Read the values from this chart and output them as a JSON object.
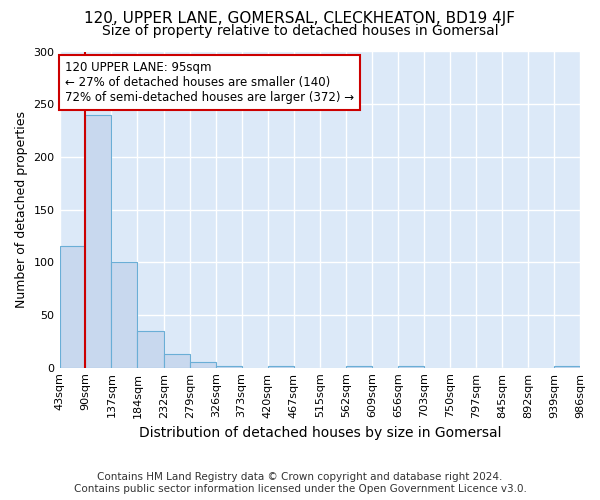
{
  "title": "120, UPPER LANE, GOMERSAL, CLECKHEATON, BD19 4JF",
  "subtitle": "Size of property relative to detached houses in Gomersal",
  "xlabel": "Distribution of detached houses by size in Gomersal",
  "ylabel": "Number of detached properties",
  "footnote1": "Contains HM Land Registry data © Crown copyright and database right 2024.",
  "footnote2": "Contains public sector information licensed under the Open Government Licence v3.0.",
  "bin_edges": [
    43,
    90,
    137,
    184,
    232,
    279,
    326,
    373,
    420,
    467,
    515,
    562,
    609,
    656,
    703,
    750,
    797,
    845,
    892,
    939,
    986
  ],
  "bin_labels": [
    "43sqm",
    "90sqm",
    "137sqm",
    "184sqm",
    "232sqm",
    "279sqm",
    "326sqm",
    "373sqm",
    "420sqm",
    "467sqm",
    "515sqm",
    "562sqm",
    "609sqm",
    "656sqm",
    "703sqm",
    "750sqm",
    "797sqm",
    "845sqm",
    "892sqm",
    "939sqm",
    "986sqm"
  ],
  "bar_heights": [
    115,
    240,
    100,
    35,
    13,
    5,
    2,
    0,
    2,
    0,
    0,
    2,
    0,
    2,
    0,
    0,
    0,
    0,
    0,
    2
  ],
  "bar_color": "#c8d8ee",
  "bar_edge_color": "#6aaed6",
  "property_line_x": 90,
  "property_line_color": "#cc0000",
  "annotation_text": "120 UPPER LANE: 95sqm\n← 27% of detached houses are smaller (140)\n72% of semi-detached houses are larger (372) →",
  "annotation_box_color": "#ffffff",
  "annotation_box_edge": "#cc0000",
  "ylim": [
    0,
    300
  ],
  "yticks": [
    0,
    50,
    100,
    150,
    200,
    250,
    300
  ],
  "plot_bg_color": "#dce9f8",
  "figure_bg_color": "#ffffff",
  "grid_color": "#ffffff",
  "title_fontsize": 11,
  "subtitle_fontsize": 10,
  "axis_label_fontsize": 9,
  "tick_fontsize": 8,
  "footnote_fontsize": 7.5
}
